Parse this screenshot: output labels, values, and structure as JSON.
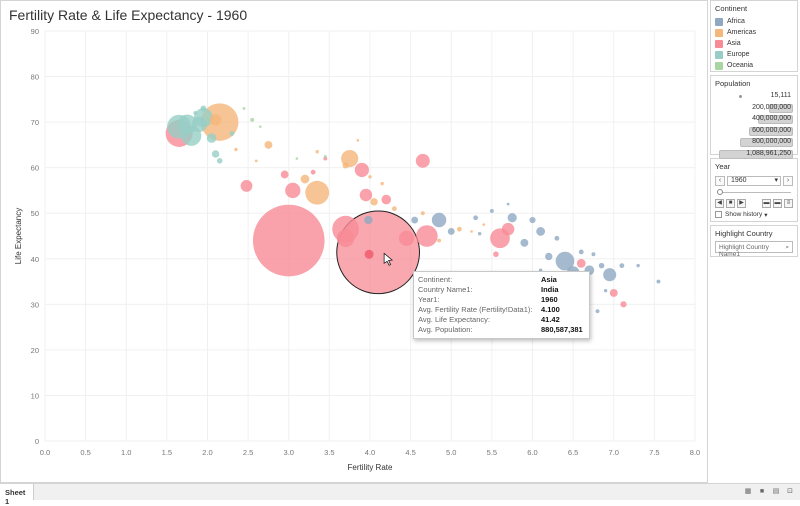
{
  "title": "Fertility Rate & Life Expectancy - 1960",
  "continents": [
    {
      "name": "Africa",
      "color": "#8fa9c2"
    },
    {
      "name": "Americas",
      "color": "#f5b77a"
    },
    {
      "name": "Asia",
      "color": "#f78b96"
    },
    {
      "name": "Europe",
      "color": "#96cec6"
    },
    {
      "name": "Oceania",
      "color": "#a8d5a2"
    }
  ],
  "legend": {
    "continent_title": "Continent",
    "population_title": "Population",
    "population_items": [
      "15,111",
      "200,000,000",
      "400,000,000",
      "600,000,000",
      "800,000,000",
      "1,088,961,250"
    ],
    "year_title": "Year",
    "year_value": "1960",
    "show_history": "Show history",
    "highlight_title": "Highlight Country",
    "highlight_placeholder": "Highlight Country Name1"
  },
  "tooltip": {
    "rows": [
      {
        "key": "Continent:",
        "value": "Asia"
      },
      {
        "key": "Country Name1:",
        "value": "India"
      },
      {
        "key": "Year1:",
        "value": "1960"
      },
      {
        "key": "Avg. Fertility Rate (Fertility!Data1):",
        "value": "4.100"
      },
      {
        "key": "Avg. Life Expectancy:",
        "value": "41.42"
      },
      {
        "key": "Avg. Population:",
        "value": "880,587,381"
      }
    ]
  },
  "sheet_tab": "Sheet 1",
  "chart_data": {
    "type": "scatter",
    "title": "Fertility Rate & Life Expectancy - 1960",
    "xlabel": "Fertility Rate",
    "ylabel": "Life Expectancy",
    "xlim": [
      0,
      8
    ],
    "ylim": [
      0,
      90
    ],
    "xticks": [
      "0.0",
      "0.5",
      "1.0",
      "1.5",
      "2.0",
      "2.5",
      "3.0",
      "3.5",
      "4.0",
      "4.5",
      "5.0",
      "5.5",
      "6.0",
      "6.5",
      "7.0",
      "7.5",
      "8.0"
    ],
    "yticks": [
      "0",
      "10",
      "20",
      "30",
      "40",
      "50",
      "60",
      "70",
      "80",
      "90"
    ],
    "points": [
      {
        "continent": "Asia",
        "x": 3.0,
        "y": 44,
        "pop": 660000000
      },
      {
        "continent": "Asia",
        "x": 4.1,
        "y": 41.42,
        "pop": 880587381,
        "highlighted": true
      },
      {
        "continent": "Asia",
        "x": 3.7,
        "y": 46.5,
        "pop": 92000000
      },
      {
        "continent": "Asia",
        "x": 3.7,
        "y": 44.5,
        "pop": 40000000
      },
      {
        "continent": "Asia",
        "x": 4.7,
        "y": 45,
        "pop": 60000000
      },
      {
        "continent": "Asia",
        "x": 4.45,
        "y": 44.5,
        "pop": 30000000
      },
      {
        "continent": "Asia",
        "x": 5.6,
        "y": 44.5,
        "pop": 50000000
      },
      {
        "continent": "Asia",
        "x": 5.7,
        "y": 46.5,
        "pop": 20000000
      },
      {
        "continent": "Asia",
        "x": 3.05,
        "y": 55,
        "pop": 30000000
      },
      {
        "continent": "Asia",
        "x": 3.95,
        "y": 54,
        "pop": 20000000
      },
      {
        "continent": "Asia",
        "x": 4.2,
        "y": 53,
        "pop": 12000000
      },
      {
        "continent": "Asia",
        "x": 2.48,
        "y": 56,
        "pop": 18000000
      },
      {
        "continent": "Asia",
        "x": 2.95,
        "y": 58.5,
        "pop": 8000000
      },
      {
        "continent": "Asia",
        "x": 3.9,
        "y": 59.5,
        "pop": 26000000
      },
      {
        "continent": "Asia",
        "x": 4.65,
        "y": 61.5,
        "pop": 25000000
      },
      {
        "continent": "Asia",
        "x": 3.3,
        "y": 59,
        "pop": 3000000
      },
      {
        "continent": "Asia",
        "x": 3.45,
        "y": 62,
        "pop": 2000000
      },
      {
        "continent": "Asia",
        "x": 1.65,
        "y": 67.5,
        "pop": 93000000
      },
      {
        "continent": "Asia",
        "x": 7.0,
        "y": 32.5,
        "pop": 8000000
      },
      {
        "continent": "Asia",
        "x": 7.12,
        "y": 30,
        "pop": 5000000
      },
      {
        "continent": "Asia",
        "x": 6.6,
        "y": 39,
        "pop": 10000000
      },
      {
        "continent": "Asia",
        "x": 5.55,
        "y": 41,
        "pop": 4000000
      },
      {
        "continent": "Americas",
        "x": 2.15,
        "y": 70,
        "pop": 181000000
      },
      {
        "continent": "Americas",
        "x": 3.35,
        "y": 54.5,
        "pop": 73000000
      },
      {
        "continent": "Americas",
        "x": 3.75,
        "y": 62,
        "pop": 38000000
      },
      {
        "continent": "Americas",
        "x": 2.1,
        "y": 70.5,
        "pop": 17000000
      },
      {
        "continent": "Americas",
        "x": 3.2,
        "y": 57.5,
        "pop": 10000000
      },
      {
        "continent": "Americas",
        "x": 2.75,
        "y": 65,
        "pop": 8000000
      },
      {
        "continent": "Americas",
        "x": 3.7,
        "y": 60.5,
        "pop": 5000000
      },
      {
        "continent": "Americas",
        "x": 4.05,
        "y": 52.5,
        "pop": 7000000
      },
      {
        "continent": "Americas",
        "x": 4.3,
        "y": 51,
        "pop": 3000000
      },
      {
        "continent": "Americas",
        "x": 4.65,
        "y": 50,
        "pop": 2000000
      },
      {
        "continent": "Americas",
        "x": 5.1,
        "y": 46.5,
        "pop": 3000000
      },
      {
        "continent": "Americas",
        "x": 4.85,
        "y": 44,
        "pop": 2000000
      },
      {
        "continent": "Americas",
        "x": 3.35,
        "y": 63.5,
        "pop": 1500000
      },
      {
        "continent": "Americas",
        "x": 4.0,
        "y": 58,
        "pop": 1500000
      },
      {
        "continent": "Americas",
        "x": 2.35,
        "y": 64,
        "pop": 1500000
      },
      {
        "continent": "Americas",
        "x": 2.6,
        "y": 61.5,
        "pop": 1000000
      },
      {
        "continent": "Americas",
        "x": 3.85,
        "y": 66,
        "pop": 800000
      },
      {
        "continent": "Americas",
        "x": 4.15,
        "y": 56.5,
        "pop": 1500000
      },
      {
        "continent": "Americas",
        "x": 5.4,
        "y": 47.5,
        "pop": 1000000
      },
      {
        "continent": "Americas",
        "x": 5.25,
        "y": 46,
        "pop": 900000
      },
      {
        "continent": "Europe",
        "x": 1.65,
        "y": 69,
        "pop": 73000000
      },
      {
        "continent": "Europe",
        "x": 1.8,
        "y": 67,
        "pop": 52000000
      },
      {
        "continent": "Europe",
        "x": 1.95,
        "y": 71,
        "pop": 46000000
      },
      {
        "continent": "Europe",
        "x": 1.75,
        "y": 69.5,
        "pop": 50000000
      },
      {
        "continent": "Europe",
        "x": 1.9,
        "y": 69.5,
        "pop": 30000000
      },
      {
        "continent": "Europe",
        "x": 2.05,
        "y": 66.5,
        "pop": 12000000
      },
      {
        "continent": "Europe",
        "x": 2.1,
        "y": 63,
        "pop": 7000000
      },
      {
        "continent": "Europe",
        "x": 2.15,
        "y": 61.5,
        "pop": 4000000
      },
      {
        "continent": "Europe",
        "x": 1.95,
        "y": 73,
        "pop": 4500000
      },
      {
        "continent": "Europe",
        "x": 2.3,
        "y": 67.5,
        "pop": 3000000
      },
      {
        "continent": "Europe",
        "x": 1.85,
        "y": 72,
        "pop": 2000000
      },
      {
        "continent": "Africa",
        "x": 6.4,
        "y": 39.5,
        "pop": 45000000
      },
      {
        "continent": "Africa",
        "x": 4.85,
        "y": 48.5,
        "pop": 27000000
      },
      {
        "continent": "Africa",
        "x": 6.95,
        "y": 36.5,
        "pop": 22000000
      },
      {
        "continent": "Africa",
        "x": 6.5,
        "y": 37,
        "pop": 20000000
      },
      {
        "continent": "Africa",
        "x": 6.7,
        "y": 37.5,
        "pop": 12000000
      },
      {
        "continent": "Africa",
        "x": 6.1,
        "y": 46,
        "pop": 10000000
      },
      {
        "continent": "Africa",
        "x": 5.9,
        "y": 43.5,
        "pop": 8000000
      },
      {
        "continent": "Africa",
        "x": 5.75,
        "y": 49,
        "pop": 11000000
      },
      {
        "continent": "Africa",
        "x": 4.55,
        "y": 48.5,
        "pop": 6000000
      },
      {
        "continent": "Africa",
        "x": 3.98,
        "y": 48.5,
        "pop": 9000000
      },
      {
        "continent": "Africa",
        "x": 5.0,
        "y": 46,
        "pop": 6000000
      },
      {
        "continent": "Africa",
        "x": 5.3,
        "y": 49,
        "pop": 3000000
      },
      {
        "continent": "Africa",
        "x": 5.5,
        "y": 50.5,
        "pop": 2000000
      },
      {
        "continent": "Africa",
        "x": 6.0,
        "y": 48.5,
        "pop": 5000000
      },
      {
        "continent": "Africa",
        "x": 6.3,
        "y": 44.5,
        "pop": 3000000
      },
      {
        "continent": "Africa",
        "x": 6.85,
        "y": 38.5,
        "pop": 4000000
      },
      {
        "continent": "Africa",
        "x": 7.1,
        "y": 38.5,
        "pop": 3000000
      },
      {
        "continent": "Africa",
        "x": 7.55,
        "y": 35,
        "pop": 2000000
      },
      {
        "continent": "Africa",
        "x": 6.9,
        "y": 33,
        "pop": 1500000
      },
      {
        "continent": "Africa",
        "x": 6.8,
        "y": 28.5,
        "pop": 2000000
      },
      {
        "continent": "Africa",
        "x": 6.75,
        "y": 41,
        "pop": 2000000
      },
      {
        "continent": "Africa",
        "x": 6.6,
        "y": 41.5,
        "pop": 3000000
      },
      {
        "continent": "Africa",
        "x": 7.3,
        "y": 38.5,
        "pop": 1500000
      },
      {
        "continent": "Africa",
        "x": 5.7,
        "y": 52,
        "pop": 1000000
      },
      {
        "continent": "Africa",
        "x": 6.2,
        "y": 40.5,
        "pop": 7000000
      },
      {
        "continent": "Africa",
        "x": 6.35,
        "y": 35.5,
        "pop": 9000000
      },
      {
        "continent": "Africa",
        "x": 6.1,
        "y": 37.5,
        "pop": 1500000
      },
      {
        "continent": "Africa",
        "x": 5.35,
        "y": 45.5,
        "pop": 1500000
      },
      {
        "continent": "Oceania",
        "x": 2.55,
        "y": 70.5,
        "pop": 2000000
      },
      {
        "continent": "Oceania",
        "x": 3.45,
        "y": 62.5,
        "pop": 1000000
      },
      {
        "continent": "Oceania",
        "x": 2.45,
        "y": 73,
        "pop": 1000000
      },
      {
        "continent": "Oceania",
        "x": 2.65,
        "y": 69,
        "pop": 500000
      },
      {
        "continent": "Oceania",
        "x": 3.1,
        "y": 62,
        "pop": 400000
      }
    ]
  }
}
